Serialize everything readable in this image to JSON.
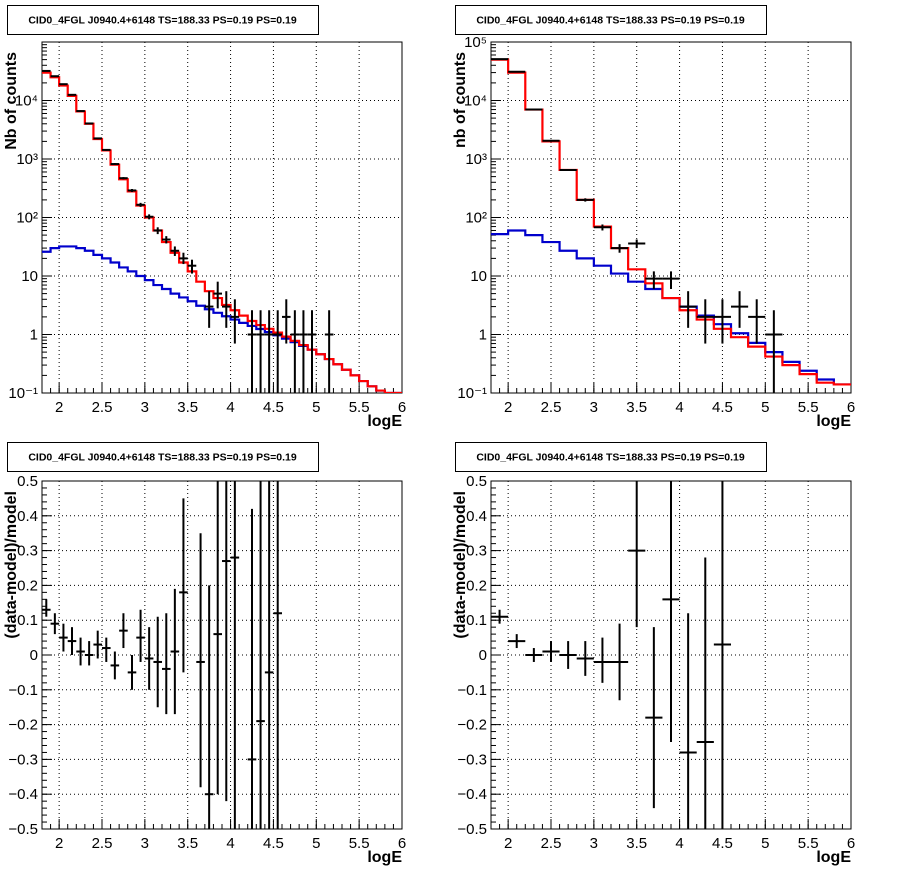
{
  "colors": {
    "data": "#000000",
    "total_model": "#ff0000",
    "component_model": "#0000cc",
    "grid": "#000000"
  },
  "chart_data": [
    {
      "type": "histogram",
      "title": "CID0_4FGL J0940.4+6148 TS=188.33 PS=0.19 PS=0.19",
      "xlabel": "logE",
      "ylabel": "Nb of counts",
      "xlim": [
        1.8,
        6
      ],
      "ylim": [
        0.1,
        100000
      ],
      "yscale": "log",
      "grid": true,
      "xticks": [
        2,
        2.5,
        3,
        3.5,
        4,
        4.5,
        5,
        5.5,
        6
      ],
      "xtick_labels": [
        "2",
        "2.5",
        "3",
        "3.5",
        "4",
        "4.5",
        "5",
        "5.5",
        "6"
      ],
      "yticks": [
        0.1,
        1,
        10,
        100,
        1000,
        10000
      ],
      "ytick_labels": [
        "10⁻¹",
        "1",
        "10",
        "10²",
        "10³",
        "10⁴"
      ],
      "bin_edges": [
        1.8,
        1.9,
        2.0,
        2.1,
        2.2,
        2.3,
        2.4,
        2.5,
        2.6,
        2.7,
        2.8,
        2.9,
        3.0,
        3.1,
        3.2,
        3.3,
        3.4,
        3.5,
        3.6,
        3.7,
        3.8,
        3.9,
        4.0,
        4.1,
        4.2,
        4.3,
        4.4,
        4.5,
        4.6,
        4.7,
        4.8,
        4.9,
        5.0,
        5.1,
        5.2,
        5.3,
        5.4,
        5.5,
        5.6,
        5.7,
        5.8,
        5.9,
        6.0
      ],
      "series": [
        {
          "values": [
            30000,
            25000,
            18000,
            12000,
            6500,
            4000,
            2200,
            1400,
            800,
            450,
            280,
            160,
            100,
            60,
            38,
            25,
            17,
            12,
            8,
            5.5,
            4.2,
            3.2,
            2.6,
            2.1,
            1.7,
            1.45,
            1.25,
            1.08,
            0.92,
            0.78,
            0.66,
            0.55,
            0.46,
            0.38,
            0.31,
            0.25,
            0.2,
            0.16,
            0.13,
            0.11,
            0.1,
            0.1
          ]
        },
        {
          "values": [
            26,
            30,
            32,
            32,
            30,
            27,
            23,
            20,
            17,
            14,
            12,
            10,
            8.5,
            7,
            6,
            5,
            4.3,
            3.7,
            3.1,
            2.7,
            2.35,
            2.05,
            1.8,
            1.58,
            1.4,
            1.24,
            1.1,
            0.97,
            0.85,
            0.74,
            0.64,
            0.55,
            0.46,
            0.38,
            0.31,
            0.25,
            0.2,
            0.16,
            0.13,
            0.11,
            0.1,
            0.1
          ]
        }
      ],
      "points": [
        {
          "x": 1.85,
          "y": 32000,
          "lo": 31700,
          "hi": 32300
        },
        {
          "x": 1.95,
          "y": 26000,
          "lo": 25700,
          "hi": 26300
        },
        {
          "x": 2.05,
          "y": 19000,
          "lo": 18700,
          "hi": 19300
        },
        {
          "x": 2.15,
          "y": 12500,
          "lo": 12250,
          "hi": 12750
        },
        {
          "x": 2.25,
          "y": 6600,
          "lo": 6450,
          "hi": 6750
        },
        {
          "x": 2.35,
          "y": 4050,
          "lo": 3950,
          "hi": 4150
        },
        {
          "x": 2.45,
          "y": 2250,
          "lo": 2180,
          "hi": 2320
        },
        {
          "x": 2.55,
          "y": 1430,
          "lo": 1380,
          "hi": 1480
        },
        {
          "x": 2.65,
          "y": 820,
          "lo": 790,
          "hi": 850
        },
        {
          "x": 2.75,
          "y": 470,
          "lo": 450,
          "hi": 490
        },
        {
          "x": 2.85,
          "y": 290,
          "lo": 273,
          "hi": 307
        },
        {
          "x": 2.95,
          "y": 165,
          "lo": 152,
          "hi": 178
        },
        {
          "x": 3.05,
          "y": 103,
          "lo": 93,
          "hi": 113
        },
        {
          "x": 3.15,
          "y": 60,
          "lo": 52,
          "hi": 68
        },
        {
          "x": 3.25,
          "y": 42,
          "lo": 36,
          "hi": 48
        },
        {
          "x": 3.35,
          "y": 27,
          "lo": 22,
          "hi": 32
        },
        {
          "x": 3.45,
          "y": 20,
          "lo": 16,
          "hi": 25
        },
        {
          "x": 3.55,
          "y": 15,
          "lo": 11,
          "hi": 19
        },
        {
          "x": 3.75,
          "y": 3,
          "lo": 1.3,
          "hi": 5.5
        },
        {
          "x": 3.85,
          "y": 5,
          "lo": 2.8,
          "hi": 8
        },
        {
          "x": 3.95,
          "y": 3,
          "lo": 1.3,
          "hi": 5.5
        },
        {
          "x": 4.05,
          "y": 2,
          "lo": 0.7,
          "hi": 4
        },
        {
          "x": 4.25,
          "y": 1,
          "lo": 0.1,
          "hi": 2.6
        },
        {
          "x": 4.35,
          "y": 1,
          "lo": 0.1,
          "hi": 2.6
        },
        {
          "x": 4.45,
          "y": 1,
          "lo": 0.1,
          "hi": 2.6
        },
        {
          "x": 4.55,
          "y": 1,
          "lo": 0.1,
          "hi": 2.6
        },
        {
          "x": 4.65,
          "y": 2,
          "lo": 0.7,
          "hi": 4
        },
        {
          "x": 4.75,
          "y": 1,
          "lo": 0.1,
          "hi": 2.6
        },
        {
          "x": 4.85,
          "y": 1,
          "lo": 0.1,
          "hi": 2.6
        },
        {
          "x": 4.95,
          "y": 1,
          "lo": 0.1,
          "hi": 2.6
        },
        {
          "x": 5.15,
          "y": 1,
          "lo": 0.1,
          "hi": 2.6
        }
      ]
    },
    {
      "type": "histogram",
      "title": "CID0_4FGL J0940.4+6148 TS=188.33 PS=0.19 PS=0.19",
      "xlabel": "logE",
      "ylabel": "nb of counts",
      "xlim": [
        1.8,
        6
      ],
      "ylim": [
        0.1,
        100000
      ],
      "yscale": "log",
      "grid": true,
      "xticks": [
        2,
        2.5,
        3,
        3.5,
        4,
        4.5,
        5,
        5.5,
        6
      ],
      "xtick_labels": [
        "2",
        "2.5",
        "3",
        "3.5",
        "4",
        "4.5",
        "5",
        "5.5",
        "6"
      ],
      "yticks": [
        0.1,
        1,
        10,
        100,
        1000,
        10000,
        100000
      ],
      "ytick_labels": [
        "10⁻¹",
        "1",
        "10",
        "10²",
        "10³",
        "10⁴",
        "10⁵"
      ],
      "bin_edges": [
        1.8,
        2.0,
        2.2,
        2.4,
        2.6,
        2.8,
        3.0,
        3.2,
        3.4,
        3.6,
        3.8,
        4.0,
        4.2,
        4.4,
        4.6,
        4.8,
        5.0,
        5.2,
        5.4,
        5.6,
        5.8,
        6.0
      ],
      "series": [
        {
          "values": [
            50000,
            30000,
            7000,
            2000,
            650,
            200,
            70,
            30,
            13,
            7.5,
            4.2,
            2.6,
            1.8,
            1.25,
            0.9,
            0.62,
            0.42,
            0.3,
            0.21,
            0.15,
            0.14
          ]
        },
        {
          "values": [
            52,
            60,
            50,
            38,
            27,
            20,
            15,
            11,
            8,
            6,
            4.2,
            3,
            2.1,
            1.5,
            1.05,
            0.72,
            0.5,
            0.34,
            0.24,
            0.17,
            0.14
          ]
        }
      ],
      "points": [
        {
          "x": 1.9,
          "y": 51000,
          "lo": 50500,
          "hi": 51500
        },
        {
          "x": 2.1,
          "y": 31000,
          "lo": 30600,
          "hi": 31400
        },
        {
          "x": 2.3,
          "y": 7000,
          "lo": 6850,
          "hi": 7150
        },
        {
          "x": 2.5,
          "y": 2050,
          "lo": 1980,
          "hi": 2120
        },
        {
          "x": 2.7,
          "y": 650,
          "lo": 625,
          "hi": 675
        },
        {
          "x": 2.9,
          "y": 200,
          "lo": 187,
          "hi": 213
        },
        {
          "x": 3.1,
          "y": 68,
          "lo": 60,
          "hi": 76
        },
        {
          "x": 3.3,
          "y": 30,
          "lo": 25,
          "hi": 35
        },
        {
          "x": 3.5,
          "y": 36,
          "lo": 30,
          "hi": 42
        },
        {
          "x": 3.7,
          "y": 9,
          "lo": 6,
          "hi": 12
        },
        {
          "x": 3.9,
          "y": 9,
          "lo": 6,
          "hi": 12
        },
        {
          "x": 4.1,
          "y": 3,
          "lo": 1.3,
          "hi": 5.5
        },
        {
          "x": 4.3,
          "y": 2,
          "lo": 0.7,
          "hi": 4
        },
        {
          "x": 4.5,
          "y": 2,
          "lo": 0.7,
          "hi": 4
        },
        {
          "x": 4.7,
          "y": 3,
          "lo": 1.3,
          "hi": 5.5
        },
        {
          "x": 4.9,
          "y": 2,
          "lo": 0.7,
          "hi": 4
        },
        {
          "x": 5.1,
          "y": 1,
          "lo": 0.1,
          "hi": 2.6
        }
      ]
    },
    {
      "type": "scatter",
      "title": "CID0_4FGL J0940.4+6148 TS=188.33 PS=0.19 PS=0.19",
      "xlabel": "logE",
      "ylabel": "(data-model)/model",
      "xlim": [
        1.8,
        6
      ],
      "ylim": [
        -0.5,
        0.5
      ],
      "grid": true,
      "xticks": [
        2,
        2.5,
        3,
        3.5,
        4,
        4.5,
        5,
        5.5,
        6
      ],
      "xtick_labels": [
        "2",
        "2.5",
        "3",
        "3.5",
        "4",
        "4.5",
        "5",
        "5.5",
        "6"
      ],
      "yticks": [
        -0.5,
        -0.4,
        -0.3,
        -0.2,
        -0.1,
        0,
        0.1,
        0.2,
        0.3,
        0.4,
        0.5
      ],
      "ytick_labels": [
        "−0.5",
        "−0.4",
        "−0.3",
        "−0.2",
        "−0.1",
        "0",
        "0.1",
        "0.2",
        "0.3",
        "0.4",
        "0.5"
      ],
      "bin_width": 0.1,
      "points": [
        {
          "x": 1.85,
          "y": 0.13,
          "lo": 0.11,
          "hi": 0.16
        },
        {
          "x": 1.95,
          "y": 0.09,
          "lo": 0.06,
          "hi": 0.12
        },
        {
          "x": 2.05,
          "y": 0.05,
          "lo": 0.01,
          "hi": 0.09
        },
        {
          "x": 2.15,
          "y": 0.04,
          "lo": 0.0,
          "hi": 0.08
        },
        {
          "x": 2.25,
          "y": 0.01,
          "lo": -0.03,
          "hi": 0.05
        },
        {
          "x": 2.35,
          "y": 0.0,
          "lo": -0.03,
          "hi": 0.04
        },
        {
          "x": 2.45,
          "y": 0.03,
          "lo": -0.01,
          "hi": 0.07
        },
        {
          "x": 2.55,
          "y": 0.02,
          "lo": -0.02,
          "hi": 0.05
        },
        {
          "x": 2.65,
          "y": -0.03,
          "lo": -0.07,
          "hi": 0.01
        },
        {
          "x": 2.75,
          "y": 0.07,
          "lo": 0.02,
          "hi": 0.12
        },
        {
          "x": 2.85,
          "y": -0.05,
          "lo": -0.1,
          "hi": 0.0
        },
        {
          "x": 2.95,
          "y": 0.05,
          "lo": -0.02,
          "hi": 0.13
        },
        {
          "x": 3.05,
          "y": -0.01,
          "lo": -0.1,
          "hi": 0.08
        },
        {
          "x": 3.15,
          "y": -0.02,
          "lo": -0.15,
          "hi": 0.11
        },
        {
          "x": 3.25,
          "y": -0.04,
          "lo": -0.17,
          "hi": 0.12
        },
        {
          "x": 3.35,
          "y": 0.01,
          "lo": -0.17,
          "hi": 0.19
        },
        {
          "x": 3.45,
          "y": 0.18,
          "lo": -0.05,
          "hi": 0.45
        },
        {
          "x": 3.65,
          "y": -0.02,
          "lo": -0.38,
          "hi": 0.35
        },
        {
          "x": 3.75,
          "y": -0.4,
          "lo": -0.5,
          "hi": 0.2
        },
        {
          "x": 3.85,
          "y": 0.06,
          "lo": -0.4,
          "hi": 0.5
        },
        {
          "x": 3.95,
          "y": 0.27,
          "lo": -0.42,
          "hi": 0.5
        },
        {
          "x": 4.05,
          "y": 0.28,
          "lo": -0.5,
          "hi": 0.5
        },
        {
          "x": 4.25,
          "y": -0.3,
          "lo": -0.5,
          "hi": 0.42
        },
        {
          "x": 4.35,
          "y": -0.19,
          "lo": -0.5,
          "hi": 0.5
        },
        {
          "x": 4.45,
          "y": -0.05,
          "lo": -0.5,
          "hi": 0.5
        },
        {
          "x": 4.55,
          "y": 0.12,
          "lo": -0.5,
          "hi": 0.5
        }
      ]
    },
    {
      "type": "scatter",
      "title": "CID0_4FGL J0940.4+6148 TS=188.33 PS=0.19 PS=0.19",
      "xlabel": "logE",
      "ylabel": "(data-model)/model",
      "xlim": [
        1.8,
        6
      ],
      "ylim": [
        -0.5,
        0.5
      ],
      "grid": true,
      "xticks": [
        2,
        2.5,
        3,
        3.5,
        4,
        4.5,
        5,
        5.5,
        6
      ],
      "xtick_labels": [
        "2",
        "2.5",
        "3",
        "3.5",
        "4",
        "4.5",
        "5",
        "5.5",
        "6"
      ],
      "yticks": [
        -0.5,
        -0.4,
        -0.3,
        -0.2,
        -0.1,
        0,
        0.1,
        0.2,
        0.3,
        0.4,
        0.5
      ],
      "ytick_labels": [
        "−0.5",
        "−0.4",
        "−0.3",
        "−0.2",
        "−0.1",
        "0",
        "0.1",
        "0.2",
        "0.3",
        "0.4",
        "0.5"
      ],
      "bin_width": 0.2,
      "points": [
        {
          "x": 1.9,
          "y": 0.11,
          "lo": 0.09,
          "hi": 0.13
        },
        {
          "x": 2.1,
          "y": 0.04,
          "lo": 0.02,
          "hi": 0.06
        },
        {
          "x": 2.3,
          "y": 0.0,
          "lo": -0.02,
          "hi": 0.02
        },
        {
          "x": 2.5,
          "y": 0.01,
          "lo": -0.02,
          "hi": 0.04
        },
        {
          "x": 2.7,
          "y": 0.0,
          "lo": -0.04,
          "hi": 0.04
        },
        {
          "x": 2.9,
          "y": -0.01,
          "lo": -0.06,
          "hi": 0.04
        },
        {
          "x": 3.1,
          "y": -0.02,
          "lo": -0.08,
          "hi": 0.05
        },
        {
          "x": 3.3,
          "y": -0.02,
          "lo": -0.13,
          "hi": 0.09
        },
        {
          "x": 3.5,
          "y": 0.3,
          "lo": 0.08,
          "hi": 0.5
        },
        {
          "x": 3.7,
          "y": -0.18,
          "lo": -0.44,
          "hi": 0.08
        },
        {
          "x": 3.9,
          "y": 0.16,
          "lo": -0.25,
          "hi": 0.5
        },
        {
          "x": 4.1,
          "y": -0.28,
          "lo": -0.5,
          "hi": 0.12
        },
        {
          "x": 4.3,
          "y": -0.25,
          "lo": -0.5,
          "hi": 0.28
        },
        {
          "x": 4.5,
          "y": 0.03,
          "lo": -0.5,
          "hi": 0.5
        }
      ]
    }
  ]
}
